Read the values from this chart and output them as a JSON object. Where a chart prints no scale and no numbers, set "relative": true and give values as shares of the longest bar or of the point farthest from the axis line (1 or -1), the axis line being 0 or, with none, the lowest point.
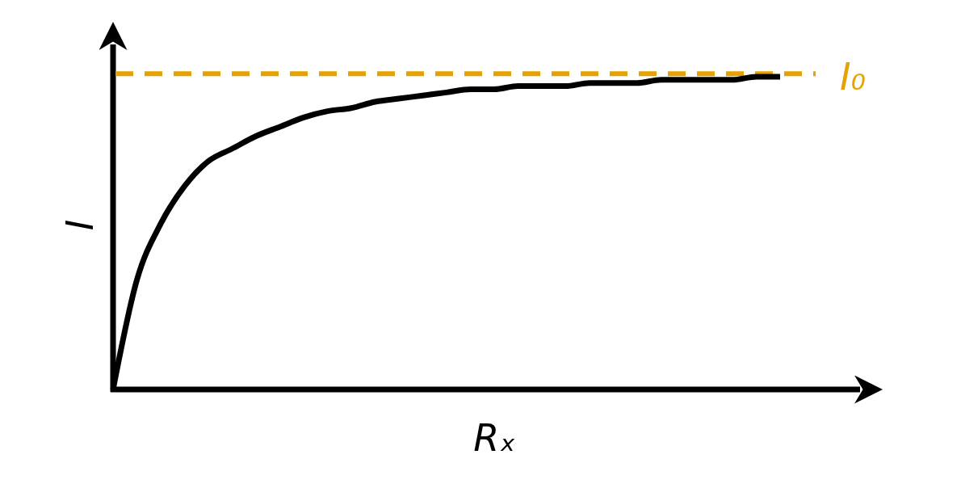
{
  "chart_data": {
    "type": "line",
    "relative": true,
    "xlabel": "Rₓ",
    "ylabel": "I",
    "categories": [
      null,
      null,
      null,
      null,
      null,
      null,
      null,
      null,
      null,
      null,
      null,
      null,
      null,
      null,
      null,
      null,
      null,
      null,
      null,
      null,
      null,
      null,
      null,
      null,
      null,
      null,
      null,
      null,
      null
    ],
    "series": [
      {
        "color": "#000000",
        "values": [
          0,
          0.35,
          0.53,
          0.65,
          0.73,
          0.77,
          0.81,
          0.84,
          0.87,
          0.89,
          0.9,
          0.92,
          0.93,
          0.94,
          0.95,
          0.96,
          0.96,
          0.97,
          0.97,
          0.97,
          0.98,
          0.98,
          0.98,
          0.99,
          0.99,
          0.99,
          0.99,
          1.0,
          1.0
        ]
      }
    ],
    "ref_lines": [
      {
        "axis": "y",
        "value": 1.01,
        "label": "I₀",
        "color": "#e6a200",
        "line_style": "dashed"
      }
    ],
    "marker": "none",
    "line_style": "solid"
  }
}
